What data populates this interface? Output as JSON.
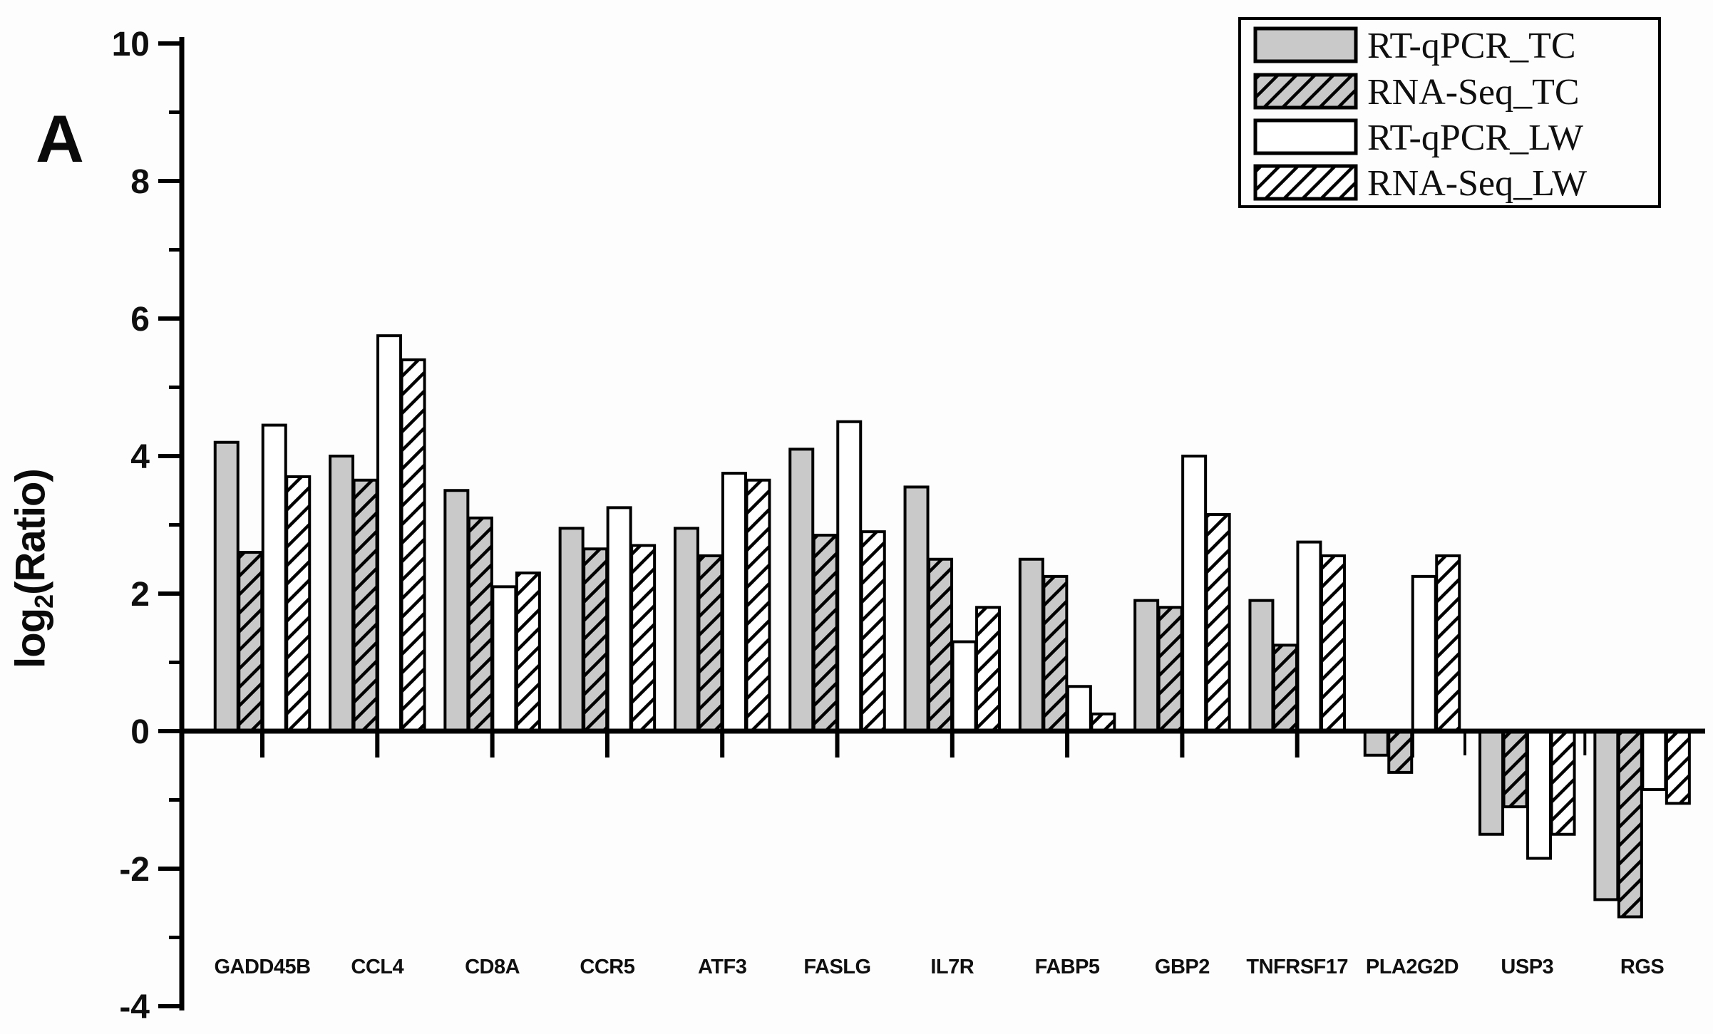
{
  "figure": {
    "panel_label": "A",
    "background": "#fdfdfd"
  },
  "y_axis": {
    "label_parts": {
      "pre": "log",
      "sub": "2",
      "post": "(Ratio)"
    },
    "major_ticks": [
      10,
      8,
      6,
      4,
      2,
      0,
      -2,
      -4
    ],
    "minor_ticks": [
      9,
      7,
      5,
      3,
      1,
      -1,
      -3
    ],
    "range": [
      -4,
      10
    ]
  },
  "legend": {
    "position": "top-right",
    "entries": [
      {
        "label": "RT-qPCR_TC",
        "swatch": "solid-gray"
      },
      {
        "label": "RNA-Seq_TC",
        "swatch": "hatch-gray"
      },
      {
        "label": "RT-qPCR_LW",
        "swatch": "solid-white"
      },
      {
        "label": "RNA-Seq_LW",
        "swatch": "hatch-white"
      }
    ]
  },
  "colors": {
    "bar_gray": "#c9c9c9",
    "bar_white": "#ffffff",
    "outline": "#000000"
  },
  "chart_data": {
    "type": "bar",
    "title": "",
    "xlabel": "",
    "ylabel": "log2(Ratio)",
    "ylim": [
      -4,
      10
    ],
    "grid": false,
    "legend_position": "top-right",
    "categories": [
      "GADD45B",
      "CCL4",
      "CD8A",
      "CCR5",
      "ATF3",
      "FASLG",
      "IL7R",
      "FABP5",
      "GBP2",
      "TNFRSF17",
      "PLA2G2D",
      "USP3",
      "RGS"
    ],
    "series": [
      {
        "name": "RT-qPCR_TC",
        "style": "solid-gray",
        "values": [
          4.2,
          4.0,
          3.5,
          2.95,
          2.95,
          4.1,
          3.55,
          2.5,
          1.9,
          1.9,
          -0.35,
          -1.5,
          -2.45
        ]
      },
      {
        "name": "RNA-Seq_TC",
        "style": "hatch-gray",
        "values": [
          2.6,
          3.65,
          3.1,
          2.65,
          2.55,
          2.85,
          2.5,
          2.25,
          1.8,
          1.25,
          -0.6,
          -1.1,
          -2.7
        ]
      },
      {
        "name": "RT-qPCR_LW",
        "style": "solid-white",
        "values": [
          4.45,
          5.75,
          2.1,
          3.25,
          3.75,
          4.5,
          1.3,
          0.65,
          4.0,
          2.75,
          2.25,
          -1.85,
          -0.85
        ]
      },
      {
        "name": "RNA-Seq_LW",
        "style": "hatch-white",
        "values": [
          3.7,
          5.4,
          2.3,
          2.7,
          3.65,
          2.9,
          1.8,
          0.25,
          3.15,
          2.55,
          2.55,
          -1.5,
          -1.05
        ]
      }
    ]
  }
}
